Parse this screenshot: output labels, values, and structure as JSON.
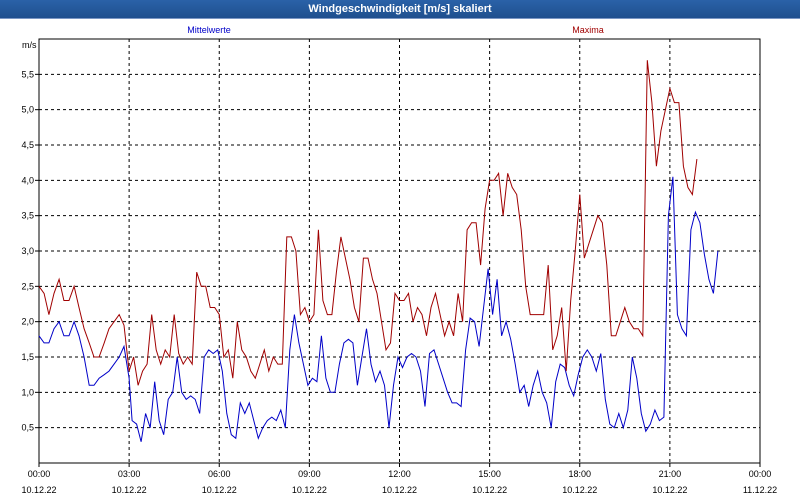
{
  "window": {
    "title": "Windgeschwindigkeit [m/s] skaliert"
  },
  "colors": {
    "titlebar": "#1f4f8e",
    "mean": "#0000c8",
    "max": "#a00000",
    "grid": "#000000"
  },
  "chart_data": {
    "type": "line",
    "title": "Windgeschwindigkeit [m/s] skaliert",
    "ylabel": "m/s",
    "xlabel": "",
    "ylim": [
      0,
      6.0
    ],
    "xlim_hours": [
      0,
      24
    ],
    "grid": true,
    "yticks": [
      "0,5",
      "1,0",
      "1,5",
      "2,0",
      "2,5",
      "3,0",
      "3,5",
      "4,0",
      "4,5",
      "5,0",
      "5,5"
    ],
    "xticks": [
      {
        "time": "00:00",
        "date": "10.12.22"
      },
      {
        "time": "03:00",
        "date": "10.12.22"
      },
      {
        "time": "06:00",
        "date": "10.12.22"
      },
      {
        "time": "09:00",
        "date": "10.12.22"
      },
      {
        "time": "12:00",
        "date": "10.12.22"
      },
      {
        "time": "15:00",
        "date": "10.12.22"
      },
      {
        "time": "18:00",
        "date": "10.12.22"
      },
      {
        "time": "21:00",
        "date": "10.12.22"
      },
      {
        "time": "00:00",
        "date": "11.12.22"
      }
    ],
    "legend": [
      "Mittelwerte",
      "Maxima"
    ],
    "series": [
      {
        "name": "Mittelwerte",
        "color": "#0000c8",
        "points": [
          [
            0.0,
            1.8
          ],
          [
            0.17,
            1.7
          ],
          [
            0.33,
            1.7
          ],
          [
            0.5,
            1.9
          ],
          [
            0.67,
            2.0
          ],
          [
            0.83,
            1.8
          ],
          [
            1.0,
            1.8
          ],
          [
            1.17,
            2.0
          ],
          [
            1.33,
            1.8
          ],
          [
            1.5,
            1.5
          ],
          [
            1.67,
            1.1
          ],
          [
            1.83,
            1.1
          ],
          [
            2.0,
            1.2
          ],
          [
            2.17,
            1.25
          ],
          [
            2.33,
            1.3
          ],
          [
            2.5,
            1.4
          ],
          [
            2.67,
            1.5
          ],
          [
            2.83,
            1.65
          ],
          [
            3.0,
            1.2
          ],
          [
            3.1,
            0.6
          ],
          [
            3.25,
            0.55
          ],
          [
            3.4,
            0.3
          ],
          [
            3.55,
            0.7
          ],
          [
            3.7,
            0.5
          ],
          [
            3.85,
            1.15
          ],
          [
            4.0,
            0.6
          ],
          [
            4.15,
            0.4
          ],
          [
            4.3,
            0.9
          ],
          [
            4.45,
            1.0
          ],
          [
            4.6,
            1.5
          ],
          [
            4.75,
            1.0
          ],
          [
            4.9,
            0.9
          ],
          [
            5.05,
            0.95
          ],
          [
            5.2,
            0.9
          ],
          [
            5.35,
            0.7
          ],
          [
            5.5,
            1.5
          ],
          [
            5.65,
            1.6
          ],
          [
            5.8,
            1.55
          ],
          [
            5.95,
            1.6
          ],
          [
            6.1,
            1.3
          ],
          [
            6.25,
            0.7
          ],
          [
            6.4,
            0.4
          ],
          [
            6.55,
            0.35
          ],
          [
            6.7,
            0.85
          ],
          [
            6.85,
            0.7
          ],
          [
            7.0,
            0.85
          ],
          [
            7.15,
            0.6
          ],
          [
            7.3,
            0.35
          ],
          [
            7.45,
            0.5
          ],
          [
            7.6,
            0.6
          ],
          [
            7.75,
            0.65
          ],
          [
            7.9,
            0.6
          ],
          [
            8.05,
            0.75
          ],
          [
            8.2,
            0.5
          ],
          [
            8.35,
            1.6
          ],
          [
            8.5,
            2.1
          ],
          [
            8.65,
            1.7
          ],
          [
            8.8,
            1.4
          ],
          [
            8.95,
            1.1
          ],
          [
            9.1,
            1.2
          ],
          [
            9.25,
            1.15
          ],
          [
            9.4,
            1.8
          ],
          [
            9.55,
            1.2
          ],
          [
            9.7,
            1.0
          ],
          [
            9.85,
            1.0
          ],
          [
            10.0,
            1.4
          ],
          [
            10.15,
            1.7
          ],
          [
            10.3,
            1.75
          ],
          [
            10.45,
            1.7
          ],
          [
            10.6,
            1.1
          ],
          [
            10.75,
            1.5
          ],
          [
            10.9,
            1.9
          ],
          [
            11.05,
            1.4
          ],
          [
            11.2,
            1.15
          ],
          [
            11.35,
            1.3
          ],
          [
            11.5,
            1.1
          ],
          [
            11.65,
            0.5
          ],
          [
            11.8,
            1.1
          ],
          [
            11.95,
            1.5
          ],
          [
            12.1,
            1.35
          ],
          [
            12.25,
            1.5
          ],
          [
            12.4,
            1.55
          ],
          [
            12.55,
            1.5
          ],
          [
            12.7,
            1.3
          ],
          [
            12.85,
            0.8
          ],
          [
            13.0,
            1.55
          ],
          [
            13.15,
            1.6
          ],
          [
            13.3,
            1.4
          ],
          [
            13.45,
            1.2
          ],
          [
            13.6,
            1.0
          ],
          [
            13.75,
            0.85
          ],
          [
            13.9,
            0.85
          ],
          [
            14.05,
            0.8
          ],
          [
            14.2,
            1.6
          ],
          [
            14.35,
            2.05
          ],
          [
            14.5,
            2.0
          ],
          [
            14.65,
            1.65
          ],
          [
            14.8,
            2.2
          ],
          [
            14.95,
            2.75
          ],
          [
            15.1,
            2.1
          ],
          [
            15.25,
            2.6
          ],
          [
            15.4,
            1.8
          ],
          [
            15.55,
            2.0
          ],
          [
            15.7,
            1.75
          ],
          [
            15.85,
            1.4
          ],
          [
            16.0,
            1.0
          ],
          [
            16.15,
            1.1
          ],
          [
            16.3,
            0.8
          ],
          [
            16.45,
            1.1
          ],
          [
            16.6,
            1.3
          ],
          [
            16.75,
            1.0
          ],
          [
            16.9,
            0.85
          ],
          [
            17.05,
            0.5
          ],
          [
            17.2,
            1.15
          ],
          [
            17.35,
            1.4
          ],
          [
            17.5,
            1.35
          ],
          [
            17.65,
            1.1
          ],
          [
            17.8,
            0.95
          ],
          [
            17.95,
            1.25
          ],
          [
            18.1,
            1.5
          ],
          [
            18.25,
            1.6
          ],
          [
            18.4,
            1.5
          ],
          [
            18.55,
            1.3
          ],
          [
            18.7,
            1.55
          ],
          [
            18.85,
            0.9
          ],
          [
            19.0,
            0.55
          ],
          [
            19.15,
            0.5
          ],
          [
            19.3,
            0.7
          ],
          [
            19.45,
            0.5
          ],
          [
            19.6,
            0.75
          ],
          [
            19.75,
            1.5
          ],
          [
            19.9,
            1.2
          ],
          [
            20.05,
            0.7
          ],
          [
            20.2,
            0.45
          ],
          [
            20.35,
            0.55
          ],
          [
            20.5,
            0.75
          ],
          [
            20.65,
            0.6
          ],
          [
            20.8,
            0.65
          ],
          [
            20.95,
            3.5
          ],
          [
            21.1,
            4.05
          ],
          [
            21.25,
            2.1
          ],
          [
            21.4,
            1.9
          ],
          [
            21.55,
            1.8
          ],
          [
            21.7,
            3.3
          ],
          [
            21.85,
            3.55
          ],
          [
            22.0,
            3.4
          ],
          [
            22.15,
            2.95
          ],
          [
            22.3,
            2.6
          ],
          [
            22.45,
            2.4
          ],
          [
            22.6,
            3.0
          ]
        ]
      },
      {
        "name": "Maxima",
        "color": "#a00000",
        "points": [
          [
            0.0,
            2.5
          ],
          [
            0.17,
            2.4
          ],
          [
            0.33,
            2.1
          ],
          [
            0.5,
            2.4
          ],
          [
            0.67,
            2.6
          ],
          [
            0.83,
            2.3
          ],
          [
            1.0,
            2.3
          ],
          [
            1.17,
            2.5
          ],
          [
            1.33,
            2.2
          ],
          [
            1.5,
            1.9
          ],
          [
            1.67,
            1.7
          ],
          [
            1.83,
            1.5
          ],
          [
            2.0,
            1.5
          ],
          [
            2.17,
            1.7
          ],
          [
            2.33,
            1.9
          ],
          [
            2.5,
            2.0
          ],
          [
            2.67,
            2.1
          ],
          [
            2.83,
            1.95
          ],
          [
            3.0,
            1.3
          ],
          [
            3.15,
            1.5
          ],
          [
            3.3,
            1.1
          ],
          [
            3.45,
            1.3
          ],
          [
            3.6,
            1.4
          ],
          [
            3.75,
            2.1
          ],
          [
            3.9,
            1.6
          ],
          [
            4.05,
            1.4
          ],
          [
            4.2,
            1.6
          ],
          [
            4.35,
            1.5
          ],
          [
            4.5,
            2.1
          ],
          [
            4.65,
            1.55
          ],
          [
            4.8,
            1.4
          ],
          [
            4.95,
            1.5
          ],
          [
            5.1,
            1.4
          ],
          [
            5.25,
            2.7
          ],
          [
            5.4,
            2.5
          ],
          [
            5.55,
            2.5
          ],
          [
            5.7,
            2.2
          ],
          [
            5.85,
            2.2
          ],
          [
            6.0,
            2.1
          ],
          [
            6.15,
            1.5
          ],
          [
            6.3,
            1.6
          ],
          [
            6.45,
            1.2
          ],
          [
            6.6,
            2.0
          ],
          [
            6.75,
            1.6
          ],
          [
            6.9,
            1.5
          ],
          [
            7.05,
            1.3
          ],
          [
            7.2,
            1.2
          ],
          [
            7.35,
            1.4
          ],
          [
            7.5,
            1.6
          ],
          [
            7.65,
            1.3
          ],
          [
            7.8,
            1.5
          ],
          [
            7.95,
            1.4
          ],
          [
            8.1,
            1.4
          ],
          [
            8.25,
            3.2
          ],
          [
            8.4,
            3.2
          ],
          [
            8.55,
            3.0
          ],
          [
            8.7,
            2.1
          ],
          [
            8.85,
            2.2
          ],
          [
            9.0,
            2.0
          ],
          [
            9.15,
            2.1
          ],
          [
            9.3,
            3.3
          ],
          [
            9.45,
            2.3
          ],
          [
            9.6,
            2.1
          ],
          [
            9.75,
            2.1
          ],
          [
            9.9,
            2.7
          ],
          [
            10.05,
            3.2
          ],
          [
            10.2,
            2.9
          ],
          [
            10.35,
            2.6
          ],
          [
            10.5,
            2.2
          ],
          [
            10.65,
            2.0
          ],
          [
            10.8,
            2.9
          ],
          [
            10.95,
            2.9
          ],
          [
            11.1,
            2.6
          ],
          [
            11.25,
            2.4
          ],
          [
            11.4,
            2.0
          ],
          [
            11.55,
            1.6
          ],
          [
            11.7,
            1.7
          ],
          [
            11.85,
            2.4
          ],
          [
            12.0,
            2.3
          ],
          [
            12.15,
            2.3
          ],
          [
            12.3,
            2.4
          ],
          [
            12.45,
            2.0
          ],
          [
            12.6,
            2.2
          ],
          [
            12.75,
            2.1
          ],
          [
            12.9,
            1.8
          ],
          [
            13.05,
            2.2
          ],
          [
            13.2,
            2.4
          ],
          [
            13.35,
            2.1
          ],
          [
            13.5,
            1.8
          ],
          [
            13.65,
            2.0
          ],
          [
            13.8,
            1.8
          ],
          [
            13.95,
            2.4
          ],
          [
            14.1,
            2.0
          ],
          [
            14.25,
            3.3
          ],
          [
            14.4,
            3.4
          ],
          [
            14.55,
            3.4
          ],
          [
            14.7,
            2.8
          ],
          [
            14.85,
            3.6
          ],
          [
            15.0,
            4.0
          ],
          [
            15.15,
            4.0
          ],
          [
            15.3,
            4.1
          ],
          [
            15.45,
            3.5
          ],
          [
            15.6,
            4.1
          ],
          [
            15.75,
            3.9
          ],
          [
            15.9,
            3.8
          ],
          [
            16.05,
            3.3
          ],
          [
            16.2,
            2.5
          ],
          [
            16.35,
            2.1
          ],
          [
            16.5,
            2.1
          ],
          [
            16.65,
            2.1
          ],
          [
            16.8,
            2.1
          ],
          [
            16.95,
            2.8
          ],
          [
            17.1,
            1.6
          ],
          [
            17.25,
            1.8
          ],
          [
            17.4,
            2.2
          ],
          [
            17.55,
            1.3
          ],
          [
            17.7,
            2.3
          ],
          [
            17.85,
            3.0
          ],
          [
            18.0,
            3.8
          ],
          [
            18.15,
            2.9
          ],
          [
            18.3,
            3.1
          ],
          [
            18.45,
            3.3
          ],
          [
            18.6,
            3.5
          ],
          [
            18.75,
            3.4
          ],
          [
            18.9,
            2.8
          ],
          [
            19.05,
            1.8
          ],
          [
            19.2,
            1.8
          ],
          [
            19.35,
            2.0
          ],
          [
            19.5,
            2.2
          ],
          [
            19.65,
            2.0
          ],
          [
            19.8,
            1.9
          ],
          [
            19.95,
            1.9
          ],
          [
            20.1,
            1.8
          ],
          [
            20.25,
            5.7
          ],
          [
            20.4,
            5.1
          ],
          [
            20.55,
            4.2
          ],
          [
            20.7,
            4.7
          ],
          [
            20.85,
            5.0
          ],
          [
            21.0,
            5.3
          ],
          [
            21.15,
            5.1
          ],
          [
            21.3,
            5.1
          ],
          [
            21.45,
            4.2
          ],
          [
            21.6,
            3.9
          ],
          [
            21.75,
            3.8
          ],
          [
            21.9,
            4.3
          ]
        ]
      }
    ]
  }
}
